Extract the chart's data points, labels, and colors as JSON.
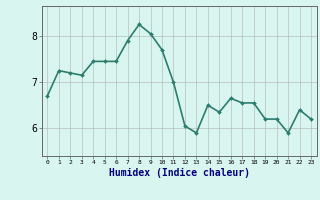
{
  "x": [
    0,
    1,
    2,
    3,
    4,
    5,
    6,
    7,
    8,
    9,
    10,
    11,
    12,
    13,
    14,
    15,
    16,
    17,
    18,
    19,
    20,
    21,
    22,
    23
  ],
  "y": [
    6.7,
    7.25,
    7.2,
    7.15,
    7.45,
    7.45,
    7.45,
    7.9,
    8.25,
    8.05,
    7.7,
    7.0,
    6.05,
    5.9,
    6.5,
    6.35,
    6.65,
    6.55,
    6.55,
    6.2,
    6.2,
    5.9,
    6.4,
    6.2
  ],
  "line_color": "#2d7d6e",
  "marker": "D",
  "marker_size": 2,
  "bg_color": "#d8f5f0",
  "grid_color": "#b0b0b0",
  "xlabel": "Humidex (Indice chaleur)",
  "xlabel_fontsize": 7,
  "ytick_labels": [
    "6",
    "7",
    "8"
  ],
  "yticks": [
    6,
    7,
    8
  ],
  "ylim": [
    5.4,
    8.65
  ],
  "xlim": [
    -0.5,
    23.5
  ],
  "xtick_labels": [
    "0",
    "1",
    "2",
    "3",
    "4",
    "5",
    "6",
    "7",
    "8",
    "9",
    "10",
    "11",
    "12",
    "13",
    "14",
    "15",
    "16",
    "17",
    "18",
    "19",
    "20",
    "21",
    "22",
    "23"
  ],
  "line_width": 1.2
}
